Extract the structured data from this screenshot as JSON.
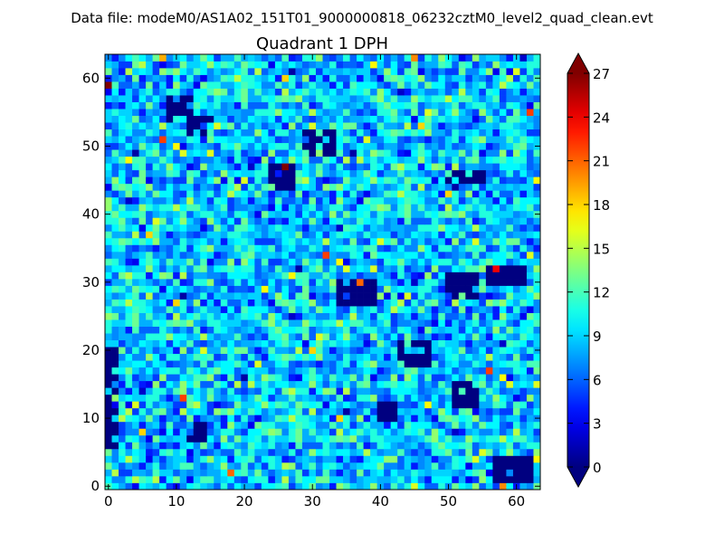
{
  "figure": {
    "suptitle": "Data file: modeM0/AS1A02_151T01_9000000818_06232cztM0_level2_quad_clean.evt"
  },
  "chart_data": {
    "type": "heatmap",
    "title": "Quadrant 1 DPH",
    "xlabel": "",
    "ylabel": "",
    "grid_shape": [
      64,
      64
    ],
    "xlim": [
      -0.5,
      63.5
    ],
    "ylim": [
      -0.5,
      63.5
    ],
    "x_ticks": [
      0,
      10,
      20,
      30,
      40,
      50,
      60
    ],
    "y_ticks": [
      0,
      10,
      20,
      30,
      40,
      50,
      60
    ],
    "origin": "lower",
    "colormap": "jet",
    "vmin": 0,
    "vmax": 27,
    "colorbar": {
      "ticks": [
        0,
        3,
        6,
        9,
        12,
        15,
        18,
        21,
        24,
        27
      ],
      "extend": "both",
      "location": "right"
    },
    "typical_value": 9,
    "zero_regions": [
      {
        "x": [
          12,
          15
        ],
        "y": [
          52,
          54
        ]
      },
      {
        "x": [
          24,
          27
        ],
        "y": [
          44,
          47
        ]
      },
      {
        "x": [
          29,
          33
        ],
        "y": [
          49,
          52
        ]
      },
      {
        "x": [
          50,
          55
        ],
        "y": [
          45,
          46
        ]
      },
      {
        "x": [
          34,
          39
        ],
        "y": [
          27,
          30
        ]
      },
      {
        "x": [
          50,
          54
        ],
        "y": [
          28,
          31
        ]
      },
      {
        "x": [
          56,
          61
        ],
        "y": [
          30,
          32
        ]
      },
      {
        "x": [
          43,
          47
        ],
        "y": [
          18,
          21
        ]
      },
      {
        "x": [
          51,
          54
        ],
        "y": [
          12,
          15
        ]
      },
      {
        "x": [
          57,
          62
        ],
        "y": [
          1,
          4
        ]
      },
      {
        "x": [
          0,
          1
        ],
        "y": [
          6,
          20
        ]
      },
      {
        "x": [
          12,
          14
        ],
        "y": [
          7,
          9
        ]
      },
      {
        "x": [
          9,
          12
        ],
        "y": [
          54,
          57
        ]
      },
      {
        "x": [
          40,
          42
        ],
        "y": [
          10,
          12
        ]
      }
    ],
    "hot_cells": [
      {
        "x": 26,
        "y": 47,
        "value": 27
      },
      {
        "x": 0,
        "y": 59,
        "value": 27
      },
      {
        "x": 57,
        "y": 32,
        "value": 24
      },
      {
        "x": 62,
        "y": 55,
        "value": 22
      },
      {
        "x": 37,
        "y": 30,
        "value": 21
      },
      {
        "x": 11,
        "y": 13,
        "value": 22
      },
      {
        "x": 18,
        "y": 2,
        "value": 21
      },
      {
        "x": 5,
        "y": 8,
        "value": 18
      },
      {
        "x": 45,
        "y": 63,
        "value": 20
      },
      {
        "x": 8,
        "y": 63,
        "value": 19
      },
      {
        "x": 58,
        "y": 0,
        "value": 20
      }
    ]
  }
}
